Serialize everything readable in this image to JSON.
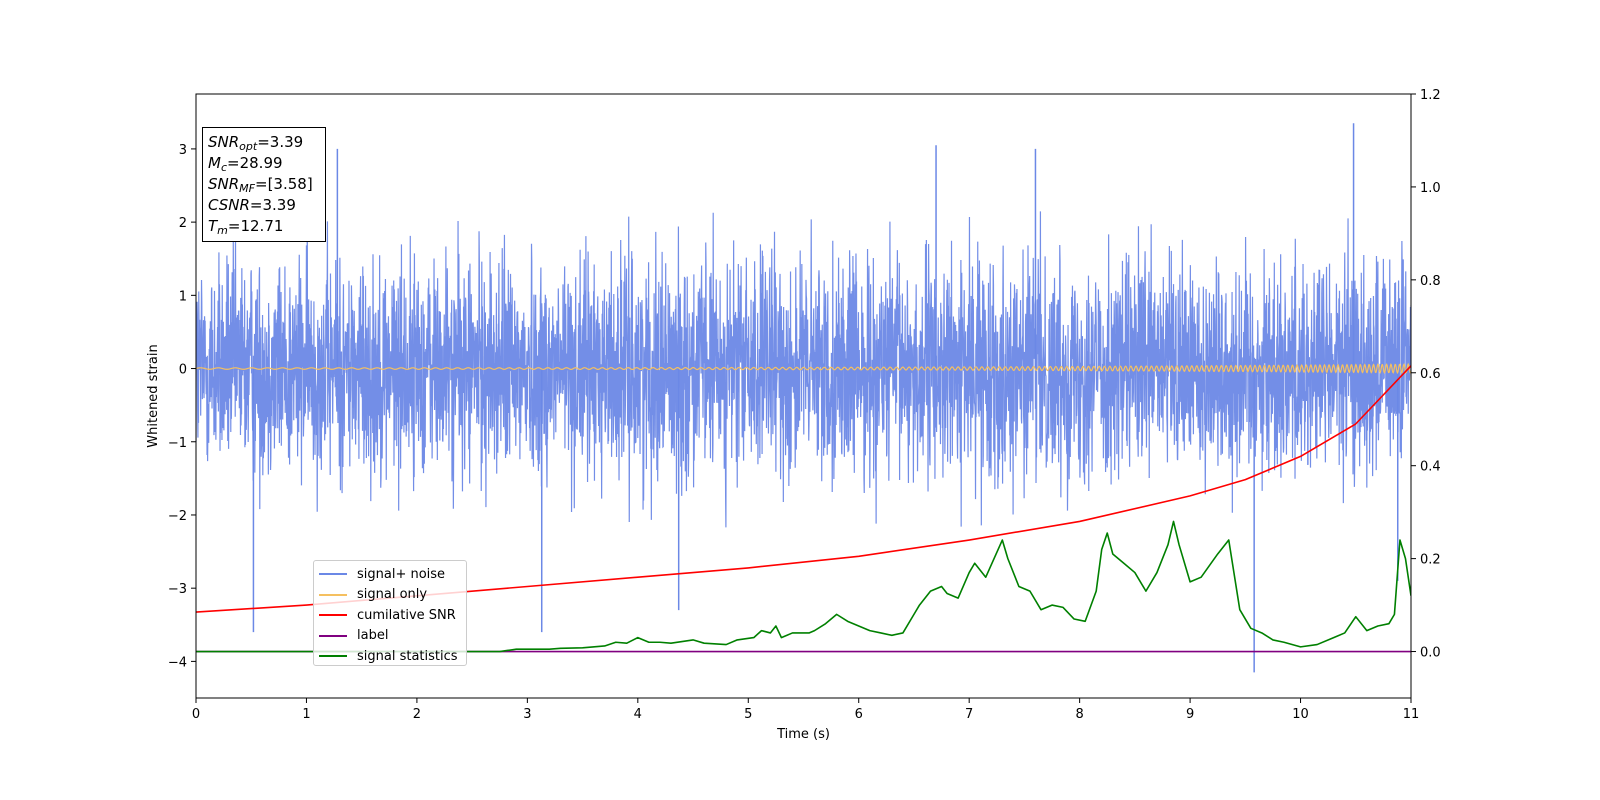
{
  "chart_data": {
    "type": "line",
    "title": "",
    "xlabel": "Time (s)",
    "ylabel": "Whitened strain",
    "y2label": "",
    "xlim": [
      0,
      11
    ],
    "ylim": [
      -4.5,
      3.75
    ],
    "y2lim": [
      -0.1,
      1.2
    ],
    "x_ticks": [
      0,
      1,
      2,
      3,
      4,
      5,
      6,
      7,
      8,
      9,
      10,
      11
    ],
    "y_ticks": [
      -4,
      -3,
      -2,
      -1,
      0,
      1,
      2,
      3
    ],
    "y2_ticks": [
      0.0,
      0.2,
      0.4,
      0.6,
      0.8,
      1.0,
      1.2
    ],
    "y2_tick_labels": [
      "0.0",
      "0.2",
      "0.4",
      "0.6",
      "0.8",
      "1.0",
      "1.2"
    ],
    "grid": false,
    "legend_position": "lower-left",
    "annotation": {
      "snr_opt": "3.39",
      "mc": "28.99",
      "snr_mf": "[3.58]",
      "csnr": "3.39",
      "tm": "12.71"
    },
    "series": [
      {
        "name": "signal+ noise",
        "color": "#6b88e6",
        "axis": "left",
        "description": "dense whitened noise, roughly within -2.5 to 3",
        "amplitude_range": [
          -4.15,
          3.35
        ],
        "spikes": [
          [
            0.52,
            -3.6
          ],
          [
            1.28,
            3.0
          ],
          [
            3.13,
            -3.6
          ],
          [
            4.37,
            -3.3
          ],
          [
            6.7,
            3.05
          ],
          [
            7.6,
            3.0
          ],
          [
            9.58,
            -4.15
          ],
          [
            10.48,
            3.35
          ],
          [
            10.88,
            -2.9
          ]
        ]
      },
      {
        "name": "signal only",
        "color": "#f5c060",
        "axis": "left",
        "description": "chirp near zero, amplitude growing toward the end",
        "amplitude_start": 0.01,
        "amplitude_end": 0.06
      },
      {
        "name": "cumilative SNR",
        "color": "#ff0000",
        "axis": "right",
        "x": [
          0,
          1,
          2,
          3,
          4,
          5,
          6,
          7,
          8,
          9,
          9.5,
          10,
          10.5,
          11
        ],
        "y": [
          0.085,
          0.1,
          0.12,
          0.14,
          0.16,
          0.18,
          0.205,
          0.24,
          0.28,
          0.335,
          0.37,
          0.42,
          0.49,
          0.615
        ]
      },
      {
        "name": "label",
        "color": "#800080",
        "axis": "right",
        "x": [
          0,
          11
        ],
        "y": [
          0,
          0
        ]
      },
      {
        "name": "signal statistics",
        "color": "#008000",
        "axis": "right",
        "x": [
          0,
          0.5,
          1,
          1.5,
          2,
          2.5,
          2.75,
          2.9,
          3.2,
          3.3,
          3.5,
          3.7,
          3.8,
          3.9,
          4,
          4.1,
          4.2,
          4.3,
          4.5,
          4.6,
          4.8,
          4.9,
          5.05,
          5.12,
          5.2,
          5.25,
          5.3,
          5.4,
          5.55,
          5.6,
          5.7,
          5.8,
          5.9,
          6,
          6.1,
          6.2,
          6.3,
          6.4,
          6.5,
          6.55,
          6.65,
          6.75,
          6.8,
          6.9,
          7,
          7.05,
          7.15,
          7.3,
          7.35,
          7.45,
          7.55,
          7.65,
          7.75,
          7.85,
          7.95,
          8.05,
          8.15,
          8.2,
          8.25,
          8.3,
          8.4,
          8.5,
          8.6,
          8.7,
          8.8,
          8.85,
          8.9,
          9,
          9.1,
          9.25,
          9.35,
          9.45,
          9.55,
          9.65,
          9.75,
          9.85,
          10,
          10.15,
          10.3,
          10.4,
          10.5,
          10.6,
          10.7,
          10.8,
          10.85,
          10.9,
          10.95,
          11
        ],
        "y": [
          0.0,
          0.0,
          0.0,
          0.0,
          0.0,
          0.0,
          0.0,
          0.005,
          0.005,
          0.007,
          0.008,
          0.012,
          0.02,
          0.018,
          0.03,
          0.02,
          0.02,
          0.018,
          0.025,
          0.018,
          0.015,
          0.025,
          0.03,
          0.045,
          0.04,
          0.055,
          0.03,
          0.04,
          0.04,
          0.045,
          0.06,
          0.08,
          0.065,
          0.055,
          0.045,
          0.04,
          0.035,
          0.04,
          0.08,
          0.1,
          0.13,
          0.14,
          0.125,
          0.115,
          0.17,
          0.19,
          0.16,
          0.24,
          0.2,
          0.14,
          0.13,
          0.09,
          0.1,
          0.095,
          0.07,
          0.065,
          0.13,
          0.22,
          0.255,
          0.21,
          0.19,
          0.17,
          0.13,
          0.17,
          0.23,
          0.28,
          0.23,
          0.15,
          0.16,
          0.21,
          0.24,
          0.09,
          0.05,
          0.04,
          0.025,
          0.02,
          0.01,
          0.015,
          0.03,
          0.04,
          0.075,
          0.045,
          0.055,
          0.06,
          0.08,
          0.24,
          0.2,
          0.12
        ]
      }
    ]
  }
}
